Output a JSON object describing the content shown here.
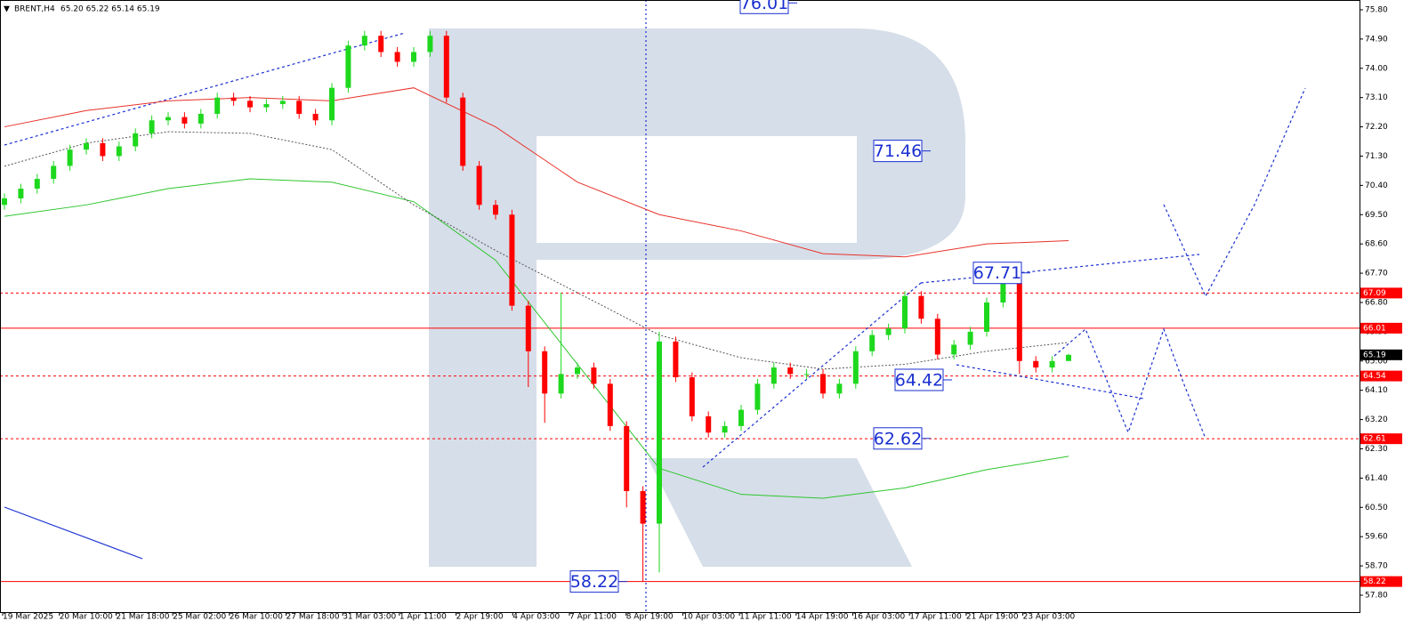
{
  "chart_data": {
    "type": "candlestick",
    "title": "BRENT,H4",
    "quote": "65.20 65.22 65.14 65.19",
    "categories": [
      "19 Mar 2025",
      "20 Mar 10:00",
      "21 Mar 18:00",
      "25 Mar 02:00",
      "26 Mar 10:00",
      "27 Mar 18:00",
      "31 Mar 03:00",
      "1 Apr 11:00",
      "2 Apr 19:00",
      "4 Apr 03:00",
      "7 Apr 11:00",
      "8 Apr 19:00",
      "10 Apr 03:00",
      "11 Apr 11:00",
      "14 Apr 19:00",
      "16 Apr 03:00",
      "17 Apr 11:00",
      "21 Apr 19:00",
      "23 Apr 03:00"
    ],
    "ylim": [
      57.28,
      76.1
    ],
    "yticks": [
      {
        "value": 75.8,
        "label": "75.80"
      },
      {
        "value": 74.9,
        "label": "74.90"
      },
      {
        "value": 74,
        "label": "74.00"
      },
      {
        "value": 73.1,
        "label": "73.10"
      },
      {
        "value": 72.2,
        "label": "72.20"
      },
      {
        "value": 71.3,
        "label": "71.30"
      },
      {
        "value": 70.4,
        "label": "70.40"
      },
      {
        "value": 69.5,
        "label": "69.50"
      },
      {
        "value": 68.6,
        "label": "68.60"
      },
      {
        "value": 67.7,
        "label": "67.70"
      },
      {
        "value": 66.8,
        "label": "66.80"
      },
      {
        "value": 65.9,
        "label": "65.90"
      },
      {
        "value": 65,
        "label": "65.00"
      },
      {
        "value": 64.1,
        "label": "64.10"
      },
      {
        "value": 63.2,
        "label": "63.20"
      },
      {
        "value": 62.3,
        "label": "62.30"
      },
      {
        "value": 61.4,
        "label": "61.40"
      },
      {
        "value": 60.5,
        "label": "60.50"
      },
      {
        "value": 59.6,
        "label": "59.60"
      },
      {
        "value": 58.7,
        "label": "58.70"
      },
      {
        "value": 57.8,
        "label": "57.80"
      }
    ],
    "up_color": "#1ed81e",
    "down_color": "#ff0000",
    "candles": {
      "open": [
        69.8,
        70.0,
        70.3,
        70.6,
        71.0,
        71.5,
        71.7,
        71.3,
        71.6,
        72.0,
        72.4,
        72.5,
        72.3,
        72.6,
        73.1,
        73.0,
        72.8,
        72.9,
        73.0,
        72.6,
        72.4,
        73.4,
        74.7,
        75.0,
        74.5,
        74.2,
        74.5,
        75.0,
        73.1,
        71.0,
        69.8,
        69.5,
        66.7,
        65.3,
        64.0,
        64.6,
        64.8,
        64.3,
        63.0,
        61.0,
        60.0,
        65.6,
        64.5,
        63.3,
        62.8,
        63.0,
        63.5,
        64.3,
        64.8,
        64.6,
        64.6,
        64.0,
        64.3,
        65.3,
        65.8,
        66.0,
        67.0,
        66.3,
        65.2,
        65.5,
        65.9,
        66.8,
        67.4,
        65.0,
        64.8,
        65.0
      ],
      "high": [
        70.15,
        70.45,
        70.75,
        71.15,
        71.65,
        71.85,
        71.85,
        71.75,
        72.15,
        72.55,
        72.65,
        72.65,
        72.75,
        73.25,
        73.25,
        73.15,
        73.05,
        73.15,
        73.15,
        72.75,
        73.55,
        74.85,
        75.15,
        75.15,
        74.65,
        74.65,
        75.15,
        75.15,
        73.25,
        71.15,
        69.95,
        69.65,
        66.85,
        65.45,
        67.1,
        64.95,
        64.95,
        64.45,
        63.15,
        61.15,
        65.9,
        65.75,
        64.65,
        63.45,
        63.15,
        63.65,
        64.45,
        64.95,
        64.95,
        64.75,
        64.75,
        64.45,
        65.45,
        65.95,
        66.15,
        67.15,
        67.15,
        66.45,
        65.65,
        66.05,
        66.95,
        67.71,
        67.55,
        65.15,
        65.15,
        65.22
      ],
      "low": [
        69.65,
        69.85,
        70.15,
        70.45,
        70.85,
        71.35,
        71.15,
        71.15,
        71.45,
        71.85,
        72.25,
        72.15,
        72.15,
        72.45,
        72.85,
        72.65,
        72.65,
        72.75,
        72.45,
        72.25,
        72.25,
        73.25,
        74.55,
        74.35,
        74.05,
        74.05,
        74.35,
        72.95,
        70.85,
        69.65,
        69.35,
        66.55,
        64.2,
        63.1,
        63.85,
        64.45,
        64.15,
        62.85,
        60.5,
        58.22,
        58.5,
        64.35,
        63.15,
        62.65,
        62.65,
        62.85,
        63.35,
        64.15,
        64.45,
        64.45,
        63.85,
        63.85,
        64.15,
        65.15,
        65.65,
        65.85,
        66.15,
        65.05,
        65.05,
        65.35,
        65.75,
        66.65,
        64.6,
        64.65,
        64.65,
        65.14
      ],
      "close": [
        70.0,
        70.3,
        70.6,
        71.0,
        71.5,
        71.7,
        71.3,
        71.6,
        72.0,
        72.4,
        72.5,
        72.3,
        72.6,
        73.1,
        73.0,
        72.8,
        72.9,
        73.0,
        72.6,
        72.4,
        73.4,
        74.7,
        75.0,
        74.5,
        74.2,
        74.5,
        75.0,
        73.1,
        71.0,
        69.8,
        69.5,
        66.7,
        65.3,
        64.0,
        64.6,
        64.8,
        64.3,
        63.0,
        61.0,
        60.0,
        65.6,
        64.5,
        63.3,
        62.8,
        63.0,
        63.5,
        64.3,
        64.8,
        64.6,
        64.6,
        64.0,
        64.3,
        65.3,
        65.8,
        66.0,
        67.0,
        66.3,
        65.2,
        65.5,
        65.9,
        66.8,
        67.4,
        65.0,
        64.8,
        65.0,
        65.19
      ]
    },
    "moving_averages": [
      {
        "color": "#e8322a",
        "style": "solid",
        "x": [
          0,
          5,
          10,
          15,
          20,
          25,
          30,
          35,
          40,
          45,
          50,
          55,
          60,
          65
        ],
        "values": [
          72.2,
          72.7,
          73.0,
          73.1,
          73.0,
          73.4,
          72.2,
          70.5,
          69.5,
          69.0,
          68.3,
          68.2,
          68.6,
          68.7
        ]
      },
      {
        "color": "#2ec52e",
        "style": "solid",
        "x": [
          0,
          5,
          10,
          15,
          20,
          25,
          30,
          35,
          40,
          45,
          50,
          55,
          60,
          65
        ],
        "values": [
          69.45,
          69.8,
          70.3,
          70.6,
          70.5,
          69.9,
          68.1,
          64.9,
          61.7,
          60.9,
          60.78,
          61.1,
          61.66,
          62.07
        ]
      },
      {
        "color": "#555555",
        "style": "dotted",
        "x": [
          0,
          5,
          10,
          15,
          20,
          25,
          30,
          35,
          40,
          45,
          50,
          55,
          60,
          65
        ],
        "values": [
          70.99,
          71.7,
          72.05,
          72.0,
          71.5,
          69.8,
          68.4,
          67.1,
          65.8,
          65.1,
          64.75,
          64.9,
          65.3,
          65.57
        ]
      }
    ],
    "levels": [
      {
        "value": 67.09,
        "label": "67.09",
        "color": "#ff0000",
        "style": "dashed"
      },
      {
        "value": 66.01,
        "label": "66.01",
        "color": "#ff0000",
        "style": "solid"
      },
      {
        "value": 65.19,
        "label": "65.19",
        "color": "#000000",
        "style": "none"
      },
      {
        "value": 64.54,
        "label": "64.54",
        "color": "#ff0000",
        "style": "dashed"
      },
      {
        "value": 62.61,
        "label": "62.61",
        "color": "#ff0000",
        "style": "dashed"
      },
      {
        "value": 58.22,
        "label": "58.22",
        "color": "#ff0000",
        "style": "solid"
      }
    ],
    "annotations": [
      {
        "value": 76.01,
        "label": "76.01"
      },
      {
        "value": 71.46,
        "label": "71.46"
      },
      {
        "value": 67.71,
        "label": "67.71"
      },
      {
        "value": 64.42,
        "label": "64.42"
      },
      {
        "value": 62.62,
        "label": "62.62"
      },
      {
        "value": 58.22,
        "label": "58.22"
      }
    ]
  }
}
